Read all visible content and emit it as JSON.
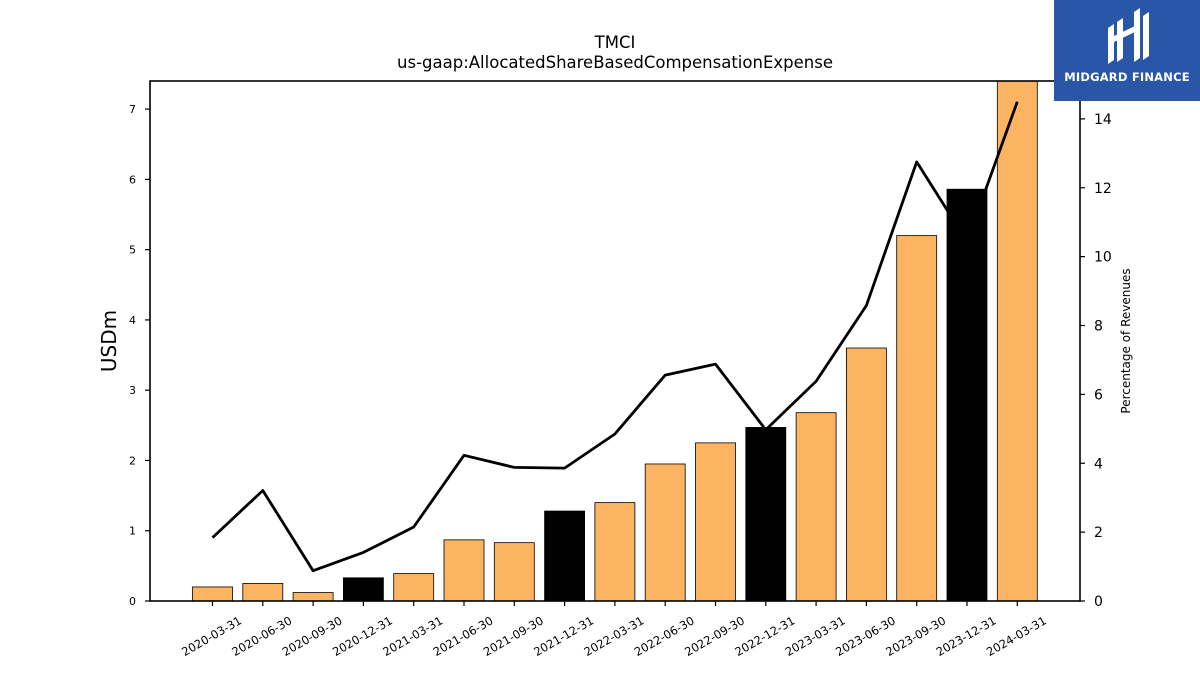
{
  "logo": {
    "text": "MIDGARD FINANCE",
    "background": "#2a56a8",
    "icon": "midgard-logo-icon"
  },
  "chart_data": {
    "type": "bar",
    "title": "TMCI",
    "subtitle": "us-gaap:AllocatedShareBasedCompensationExpense",
    "ylabel": "USDm",
    "y2label": "Percentage of Revenues",
    "ylim": [
      0,
      7.4
    ],
    "y2lim": [
      0,
      15.1
    ],
    "yticks": [
      0,
      1,
      2,
      3,
      4,
      5,
      6,
      7
    ],
    "y2ticks": [
      0,
      2,
      4,
      6,
      8,
      10,
      12,
      14
    ],
    "grid": false,
    "categories": [
      "2020-03-31",
      "2020-06-30",
      "2020-09-30",
      "2020-12-31",
      "2021-03-31",
      "2021-06-30",
      "2021-09-30",
      "2021-12-31",
      "2022-03-31",
      "2022-06-30",
      "2022-09-30",
      "2022-12-31",
      "2023-03-31",
      "2023-06-30",
      "2023-09-30",
      "2023-12-31",
      "2024-03-31"
    ],
    "series": [
      {
        "type": "bar",
        "axis": "left",
        "values": [
          0.2,
          0.25,
          0.12,
          0.33,
          0.39,
          0.87,
          0.83,
          1.28,
          1.4,
          1.95,
          2.25,
          2.47,
          2.68,
          3.6,
          5.2,
          5.86,
          7.42
        ],
        "colors": [
          "#fdb462",
          "#fdb462",
          "#fdb462",
          "#000000",
          "#fdb462",
          "#fdb462",
          "#fdb462",
          "#000000",
          "#fdb462",
          "#fdb462",
          "#fdb462",
          "#000000",
          "#fdb462",
          "#fdb462",
          "#fdb462",
          "#000000",
          "#fdb462"
        ]
      },
      {
        "type": "line",
        "axis": "right",
        "color": "#000000",
        "values": [
          1.84,
          3.21,
          0.88,
          1.41,
          2.15,
          4.23,
          3.88,
          3.86,
          4.85,
          6.56,
          6.88,
          4.97,
          6.38,
          8.58,
          12.75,
          10.44,
          14.5
        ]
      }
    ]
  }
}
